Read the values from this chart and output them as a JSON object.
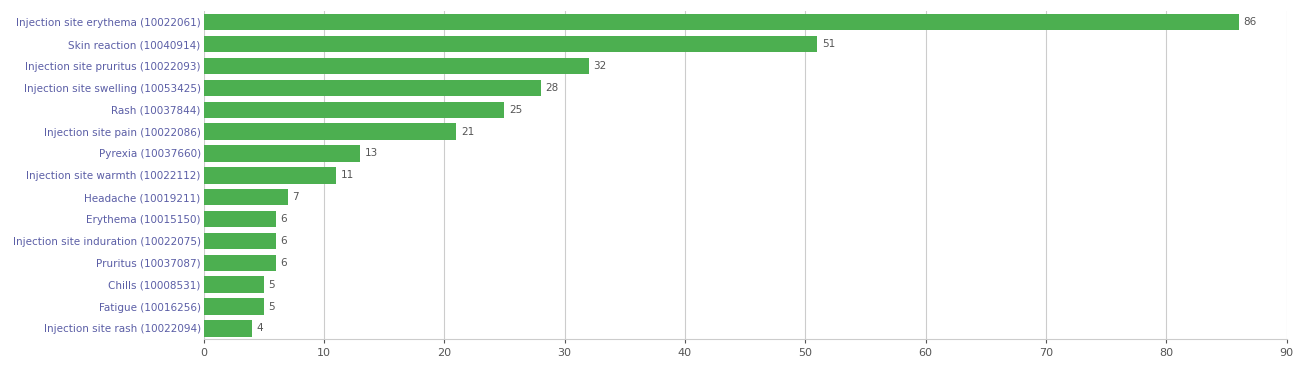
{
  "categories": [
    "Injection site erythema (10022061)",
    "Skin reaction (10040914)",
    "Injection site pruritus (10022093)",
    "Injection site swelling (10053425)",
    "Rash (10037844)",
    "Injection site pain (10022086)",
    "Pyrexia (10037660)",
    "Injection site warmth (10022112)",
    "Headache (10019211)",
    "Erythema (10015150)",
    "Injection site induration (10022075)",
    "Pruritus (10037087)",
    "Chills (10008531)",
    "Fatigue (10016256)",
    "Injection site rash (10022094)"
  ],
  "values": [
    86,
    51,
    32,
    28,
    25,
    21,
    13,
    11,
    7,
    6,
    6,
    6,
    5,
    5,
    4
  ],
  "bar_color": "#4caf50",
  "label_color": "#5b5ea6",
  "value_color": "#555555",
  "background_color": "#ffffff",
  "grid_color": "#cccccc",
  "xlim": [
    0,
    90
  ],
  "xticks": [
    0,
    10,
    20,
    30,
    40,
    50,
    60,
    70,
    80,
    90
  ],
  "bar_height": 0.75,
  "label_fontsize": 7.5,
  "value_fontsize": 7.5,
  "tick_fontsize": 8.0
}
